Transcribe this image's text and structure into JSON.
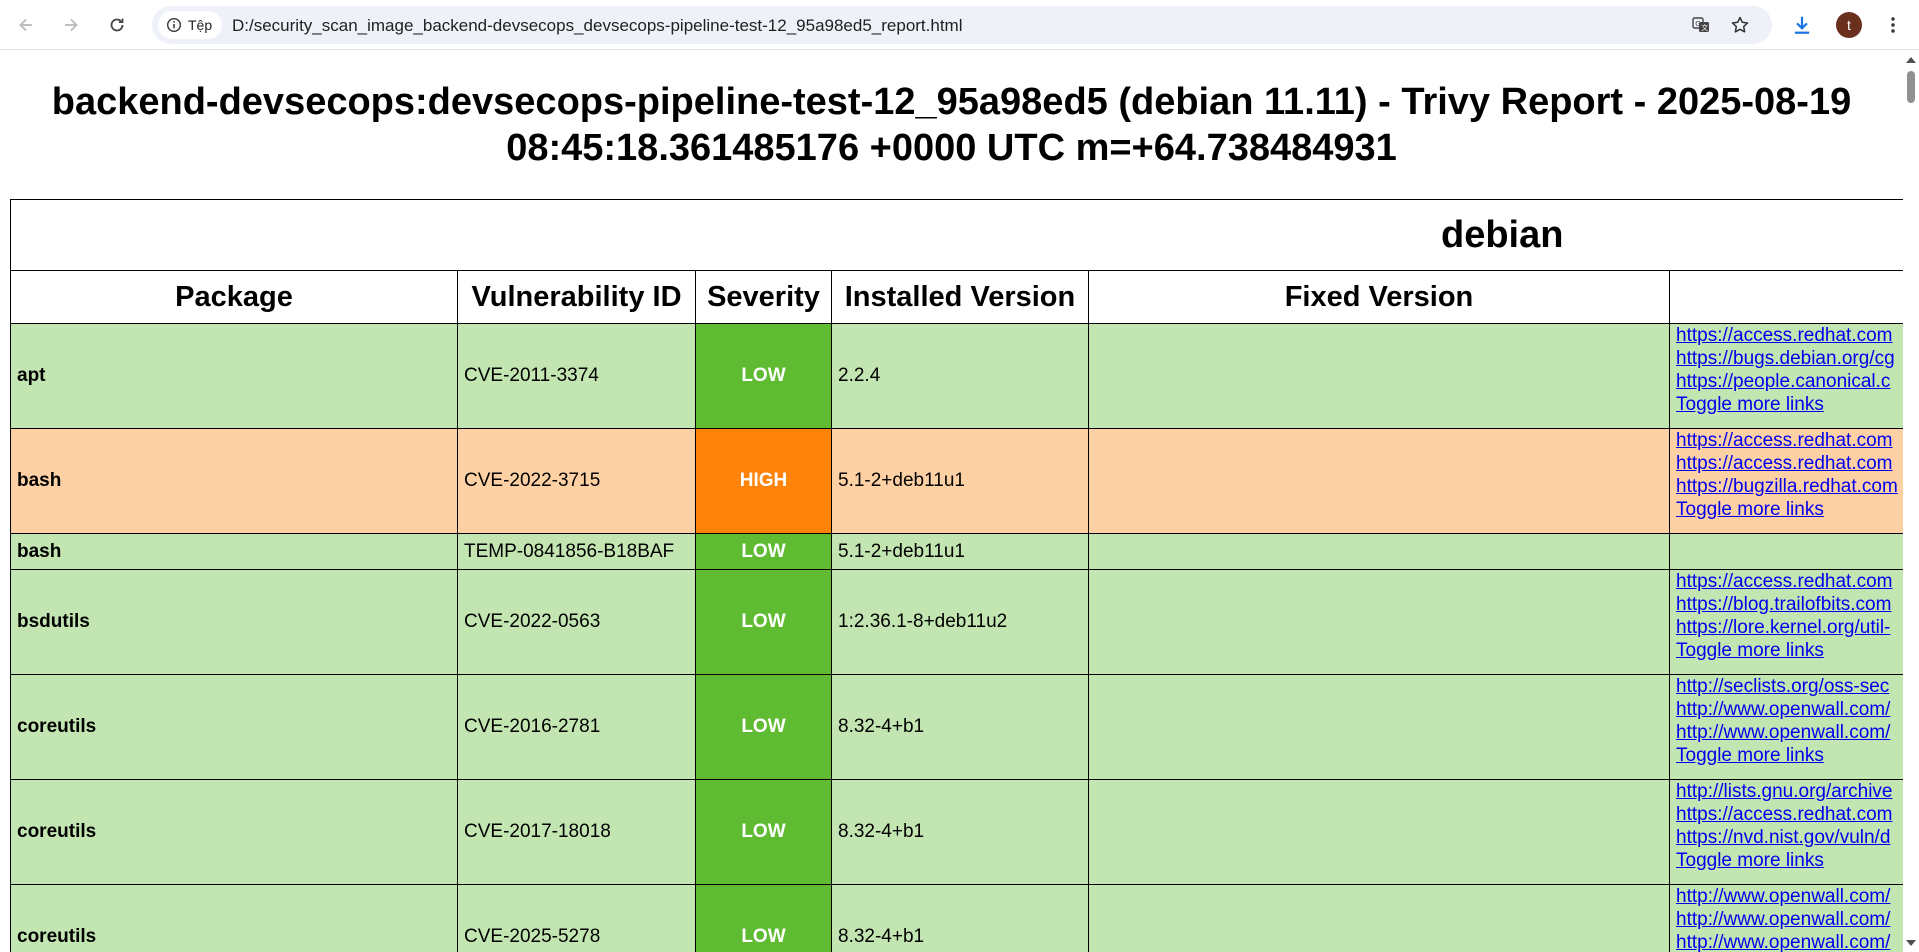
{
  "browser": {
    "site_chip_label": "Tệp",
    "url": "D:/security_scan_image_backend-devsecops_devsecops-pipeline-test-12_95a98ed5_report.html",
    "avatar_letter": "t"
  },
  "page": {
    "title": "backend-devsecops:devsecops-pipeline-test-12_95a98ed5 (debian 11.11) - Trivy Report - 2025-08-19 08:45:18.361485176 +0000 UTC m=+64.738484931"
  },
  "report": {
    "group_label": "debian",
    "columns": [
      "Package",
      "Vulnerability ID",
      "Severity",
      "Installed Version",
      "Fixed Version",
      ""
    ],
    "toggle_label": "Toggle more links",
    "rows": [
      {
        "package": "apt",
        "vuln_id": "CVE-2011-3374",
        "severity": "LOW",
        "installed": "2.2.4",
        "fixed": "",
        "links": [
          "https://access.redhat.com",
          "https://bugs.debian.org/cg",
          "https://people.canonical.c"
        ]
      },
      {
        "package": "bash",
        "vuln_id": "CVE-2022-3715",
        "severity": "HIGH",
        "installed": "5.1-2+deb11u1",
        "fixed": "",
        "links": [
          "https://access.redhat.com",
          "https://access.redhat.com",
          "https://bugzilla.redhat.com"
        ]
      },
      {
        "package": "bash",
        "vuln_id": "TEMP-0841856-B18BAF",
        "severity": "LOW",
        "installed": "5.1-2+deb11u1",
        "fixed": "",
        "links": []
      },
      {
        "package": "bsdutils",
        "vuln_id": "CVE-2022-0563",
        "severity": "LOW",
        "installed": "1:2.36.1-8+deb11u2",
        "fixed": "",
        "links": [
          "https://access.redhat.com",
          "https://blog.trailofbits.com",
          "https://lore.kernel.org/util-"
        ]
      },
      {
        "package": "coreutils",
        "vuln_id": "CVE-2016-2781",
        "severity": "LOW",
        "installed": "8.32-4+b1",
        "fixed": "",
        "links": [
          "http://seclists.org/oss-sec",
          "http://www.openwall.com/",
          "http://www.openwall.com/"
        ]
      },
      {
        "package": "coreutils",
        "vuln_id": "CVE-2017-18018",
        "severity": "LOW",
        "installed": "8.32-4+b1",
        "fixed": "",
        "links": [
          "http://lists.gnu.org/archive",
          "https://access.redhat.com",
          "https://nvd.nist.gov/vuln/d"
        ]
      },
      {
        "package": "coreutils",
        "vuln_id": "CVE-2025-5278",
        "severity": "LOW",
        "installed": "8.32-4+b1",
        "fixed": "",
        "links": [
          "http://www.openwall.com/",
          "http://www.openwall.com/",
          "http://www.openwall.com/"
        ]
      }
    ]
  },
  "colors": {
    "low_row": "#c3e5b1",
    "low_badge": "#5fbb31",
    "high_row": "#fed1a4",
    "high_badge": "#fe8309",
    "link": "#0000ee"
  }
}
